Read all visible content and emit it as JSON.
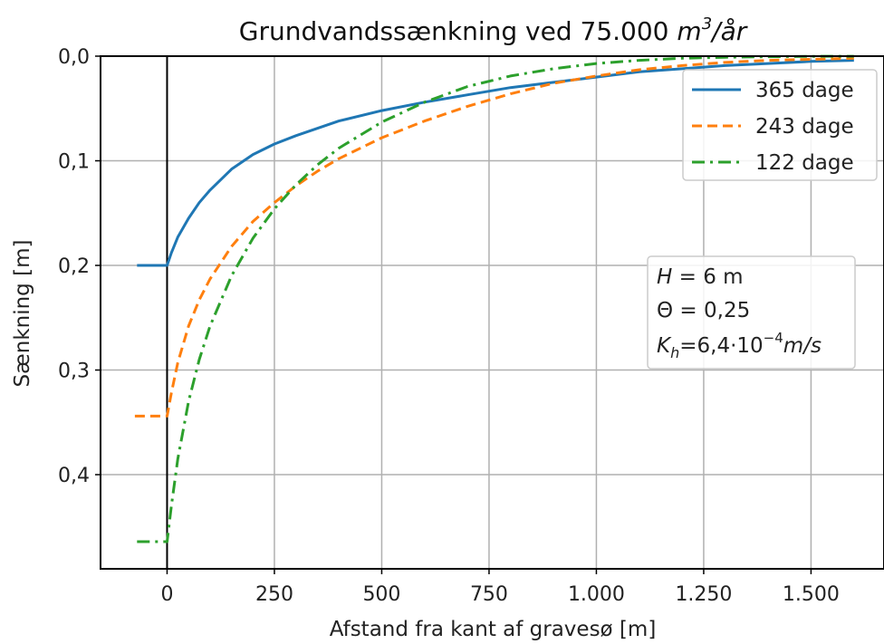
{
  "chart_data": {
    "type": "line",
    "title_prefix": "Grundvandssænkning ved 75.000 ",
    "title_unit_base": "m",
    "title_unit_exp": "3",
    "title_unit_suffix": "/år",
    "xlabel": "Afstand fra kant af gravesø [m]",
    "ylabel": "Sænkning [m]",
    "xlim": [
      -155,
      1670
    ],
    "ylim": [
      0.49,
      0.0
    ],
    "y_inverted": true,
    "grid": true,
    "legend_position": "top-right",
    "x_ticks": [
      {
        "value": 0,
        "label": "0"
      },
      {
        "value": 250,
        "label": "250"
      },
      {
        "value": 500,
        "label": "500"
      },
      {
        "value": 750,
        "label": "750"
      },
      {
        "value": 1000,
        "label": "1.000"
      },
      {
        "value": 1250,
        "label": "1.250"
      },
      {
        "value": 1500,
        "label": "1.500"
      }
    ],
    "y_ticks": [
      {
        "value": 0.0,
        "label": "0,0"
      },
      {
        "value": 0.1,
        "label": "0,1"
      },
      {
        "value": 0.2,
        "label": "0,2"
      },
      {
        "value": 0.3,
        "label": "0,3"
      },
      {
        "value": 0.4,
        "label": "0,4"
      }
    ],
    "lake_edge_x": 0,
    "series": [
      {
        "name": "365 dage",
        "color": "#1f77b4",
        "dash": "solid",
        "x": [
          -70,
          0,
          10,
          25,
          50,
          75,
          100,
          150,
          200,
          250,
          300,
          400,
          500,
          600,
          700,
          800,
          900,
          1000,
          1100,
          1200,
          1300,
          1400,
          1500,
          1600
        ],
        "y": [
          0.2,
          0.2,
          0.188,
          0.173,
          0.155,
          0.14,
          0.128,
          0.108,
          0.094,
          0.084,
          0.076,
          0.062,
          0.052,
          0.044,
          0.037,
          0.03,
          0.025,
          0.02,
          0.015,
          0.012,
          0.009,
          0.007,
          0.005,
          0.004
        ]
      },
      {
        "name": "243 dage",
        "color": "#ff7f0e",
        "dash": "dashed",
        "x": [
          -75,
          0,
          10,
          25,
          50,
          75,
          100,
          150,
          200,
          250,
          300,
          350,
          400,
          500,
          600,
          700,
          800,
          900,
          1000,
          1100,
          1200,
          1300,
          1400,
          1500,
          1600
        ],
        "y": [
          0.344,
          0.344,
          0.322,
          0.293,
          0.258,
          0.233,
          0.213,
          0.182,
          0.158,
          0.14,
          0.124,
          0.11,
          0.098,
          0.078,
          0.062,
          0.048,
          0.036,
          0.026,
          0.019,
          0.013,
          0.009,
          0.006,
          0.004,
          0.003,
          0.002
        ]
      },
      {
        "name": "122 dage",
        "color": "#2ca02c",
        "dash": "dashdot",
        "x": [
          -70,
          0,
          10,
          25,
          50,
          75,
          100,
          150,
          200,
          250,
          300,
          350,
          400,
          500,
          600,
          700,
          800,
          900,
          1000,
          1100,
          1200,
          1300,
          1400,
          1500,
          1600
        ],
        "y": [
          0.464,
          0.464,
          0.43,
          0.385,
          0.33,
          0.29,
          0.258,
          0.21,
          0.174,
          0.146,
          0.123,
          0.104,
          0.088,
          0.063,
          0.044,
          0.029,
          0.019,
          0.012,
          0.007,
          0.004,
          0.002,
          0.001,
          0.0005,
          0.0002,
          0.0001
        ]
      }
    ],
    "info_box": {
      "line1_var": "H",
      "line1_rest": " = 6  m",
      "line2": "Θ = 0,25",
      "line3_var": "K",
      "line3_sub": "h",
      "line3_mid": "=6,4·10",
      "line3_exp": "−4",
      "line3_unit": "m/s",
      "position": "right-middle"
    }
  }
}
